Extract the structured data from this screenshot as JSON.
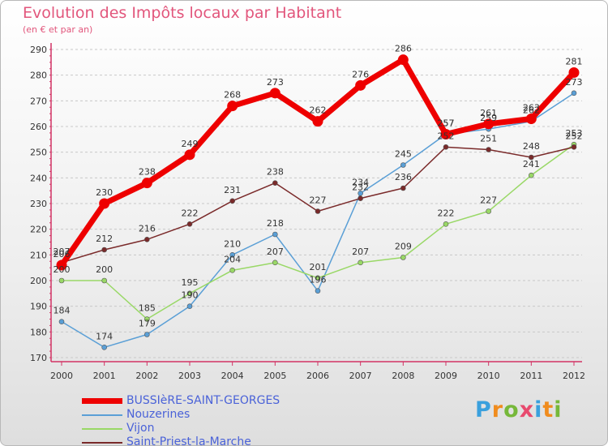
{
  "header": {
    "title": "Evolution des Impôts locaux par Habitant",
    "subtitle": "(en € et par an)"
  },
  "logo": {
    "text": "Proxiti"
  },
  "colors": {
    "title": "#e2567c",
    "axis": "#d23264",
    "legend_text": "#4a62d8",
    "grid": "#c8c8c8"
  },
  "chart_data": {
    "type": "line",
    "title": "Evolution des Impôts locaux par Habitant",
    "subtitle": "(en € et par an)",
    "x": [
      "2000",
      "2001",
      "2002",
      "2003",
      "2004",
      "2005",
      "2006",
      "2007",
      "2008",
      "2009",
      "2010",
      "2011",
      "2012"
    ],
    "ylim": [
      170,
      290
    ],
    "yticks": [
      170,
      180,
      190,
      200,
      210,
      220,
      230,
      240,
      250,
      260,
      270,
      280,
      290
    ],
    "grid": "horizontal dashed",
    "legend_placement": "bottom-left",
    "series": [
      {
        "name": "BUSSIèRE-SAINT-GEORGES",
        "color": "#ee0000",
        "values": [
          206,
          230,
          238,
          249,
          268,
          273,
          262,
          276,
          286,
          257,
          261,
          263,
          281
        ],
        "show_labels": true
      },
      {
        "name": "Nouzerines",
        "color": "#5a9fd6",
        "values": [
          184,
          174,
          179,
          190,
          210,
          218,
          196,
          234,
          245,
          257,
          259,
          262,
          273
        ],
        "show_labels": true
      },
      {
        "name": "Vijon",
        "color": "#99d866",
        "values": [
          200,
          200,
          185,
          195,
          204,
          207,
          201,
          207,
          209,
          222,
          227,
          241,
          253
        ],
        "show_labels": true
      },
      {
        "name": "Saint-Priest-la-Marche",
        "color": "#7a2a2a",
        "values": [
          207,
          212,
          216,
          222,
          231,
          238,
          227,
          232,
          236,
          252,
          251,
          248,
          252
        ],
        "show_labels": true
      }
    ]
  }
}
